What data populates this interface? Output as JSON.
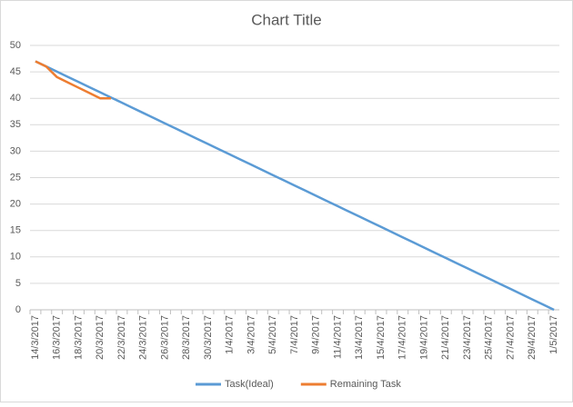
{
  "chart_data": {
    "type": "line",
    "title": "Chart Title",
    "categories": [
      "14/3/2017",
      null,
      "16/3/2017",
      null,
      "18/3/2017",
      null,
      "20/3/2017",
      null,
      "22/3/2017",
      null,
      "24/3/2017",
      null,
      "26/3/2017",
      null,
      "28/3/2017",
      null,
      "30/3/2017",
      null,
      "1/4/2017",
      null,
      "3/4/2017",
      null,
      "5/4/2017",
      null,
      "7/4/2017",
      null,
      "9/4/2017",
      null,
      "11/4/2017",
      null,
      "13/4/2017",
      null,
      "15/4/2017",
      null,
      "17/4/2017",
      null,
      "19/4/2017",
      null,
      "21/4/2017",
      null,
      "23/4/2017",
      null,
      "25/4/2017",
      null,
      "27/4/2017",
      null,
      "29/4/2017",
      null,
      "1/5/2017"
    ],
    "series": [
      {
        "name": "Task(Ideal)",
        "color": "#5b9bd5",
        "values": [
          47,
          46.02,
          45.04,
          44.06,
          43.08,
          42.1,
          41.13,
          40.15,
          39.17,
          38.19,
          37.21,
          36.23,
          35.25,
          34.27,
          33.29,
          32.31,
          31.33,
          30.35,
          29.38,
          28.4,
          27.42,
          26.44,
          25.46,
          24.48,
          23.5,
          22.52,
          21.54,
          20.56,
          19.58,
          18.6,
          17.63,
          16.65,
          15.67,
          14.69,
          13.71,
          12.73,
          11.75,
          10.77,
          9.79,
          8.81,
          7.83,
          6.85,
          5.88,
          4.9,
          3.92,
          2.94,
          1.96,
          0.98,
          0
        ]
      },
      {
        "name": "Remaining Task",
        "color": "#ed7d31",
        "values": [
          47,
          46,
          44,
          43,
          42,
          41,
          40,
          40,
          null,
          null,
          null,
          null,
          null,
          null,
          null,
          null,
          null,
          null,
          null,
          null,
          null,
          null,
          null,
          null,
          null,
          null,
          null,
          null,
          null,
          null,
          null,
          null,
          null,
          null,
          null,
          null,
          null,
          null,
          null,
          null,
          null,
          null,
          null,
          null,
          null,
          null,
          null,
          null,
          null
        ]
      }
    ],
    "ylim": [
      0,
      50
    ],
    "yticks": [
      0,
      5,
      10,
      15,
      20,
      25,
      30,
      35,
      40,
      45,
      50
    ],
    "grid": true,
    "legend": "bottom"
  }
}
